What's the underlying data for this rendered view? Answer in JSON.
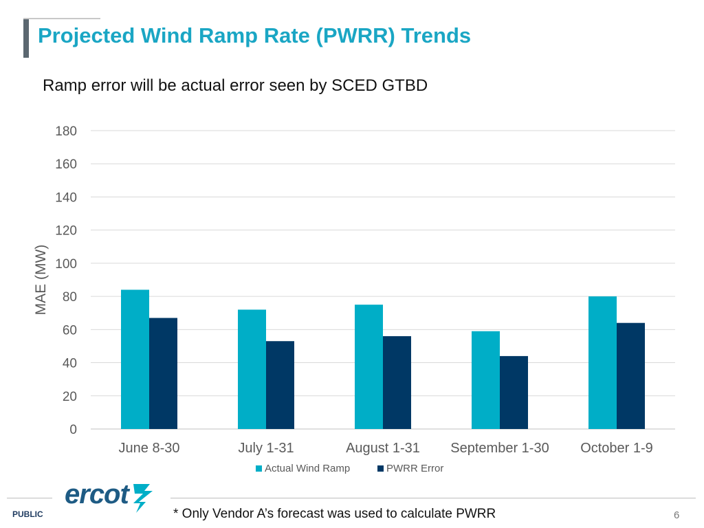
{
  "header": {
    "title": "Projected Wind Ramp Rate (PWRR) Trends",
    "subtitle": "Ramp error will be actual error seen by SCED GTBD"
  },
  "chart_data": {
    "type": "bar",
    "categories": [
      "June 8-30",
      "July 1-31",
      "August 1-31",
      "September 1-30",
      "October 1-9"
    ],
    "series": [
      {
        "name": "Actual Wind Ramp",
        "values": [
          84,
          72,
          75,
          59,
          80
        ],
        "color": "#00aec7"
      },
      {
        "name": "PWRR Error",
        "values": [
          67,
          53,
          56,
          44,
          64
        ],
        "color": "#003865"
      }
    ],
    "title": "",
    "xlabel": "",
    "ylabel": "MAE (MW)",
    "ylim": [
      0,
      180
    ],
    "yticks": [
      "0",
      "20",
      "40",
      "60",
      "80",
      "100",
      "120",
      "140",
      "160",
      "180"
    ],
    "grid": true,
    "legend_position": "bottom"
  },
  "footer": {
    "logo_text": "ercot",
    "classification": "PUBLIC",
    "footnote": "* Only Vendor A’s forecast was used to calculate PWRR",
    "page_number": "6"
  }
}
